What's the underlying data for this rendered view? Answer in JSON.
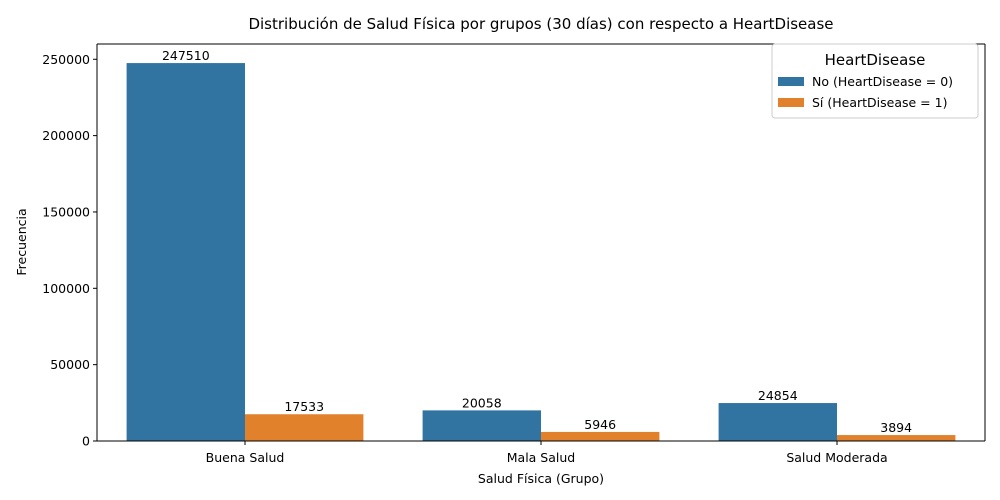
{
  "chart_data": {
    "type": "bar",
    "title": "Distribución de Salud Física por grupos (30 días) con respecto a HeartDisease",
    "xlabel": "Salud Física (Grupo)",
    "ylabel": "Frecuencia",
    "categories": [
      "Buena Salud",
      "Mala Salud",
      "Salud Moderada"
    ],
    "series": [
      {
        "name": "No (HeartDisease = 0)",
        "color": "#3274a1",
        "values": [
          247510,
          20058,
          24854
        ]
      },
      {
        "name": "Sí (HeartDisease = 1)",
        "color": "#e1812c",
        "values": [
          17533,
          5946,
          3894
        ]
      }
    ],
    "ylim": [
      0,
      260000
    ],
    "yticks": [
      0,
      50000,
      100000,
      150000,
      200000,
      250000
    ],
    "legend": {
      "title": "HeartDisease",
      "position": "top-right"
    },
    "grid": false
  }
}
